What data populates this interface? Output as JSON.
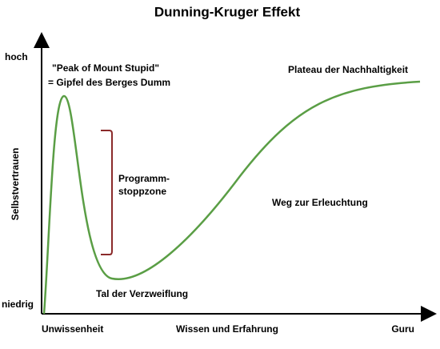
{
  "title": "Dunning-Kruger Effekt",
  "y_axis": {
    "label": "Selbstvertrauen",
    "high": "hoch",
    "low": "niedrig"
  },
  "x_axis": {
    "start": "Unwissenheit",
    "middle": "Wissen und Erfahrung",
    "end": "Guru"
  },
  "annotations": {
    "peak_en": "\"Peak of Mount Stupid\"",
    "peak_de": "= Gipfel des Berges Dumm",
    "plateau": "Plateau der Nachhaltigkeit",
    "zone_line1": "Programm-",
    "zone_line2": "stoppzone",
    "path": "Weg zur Erleuchtung",
    "valley": "Tal der Verzweiflung"
  }
}
